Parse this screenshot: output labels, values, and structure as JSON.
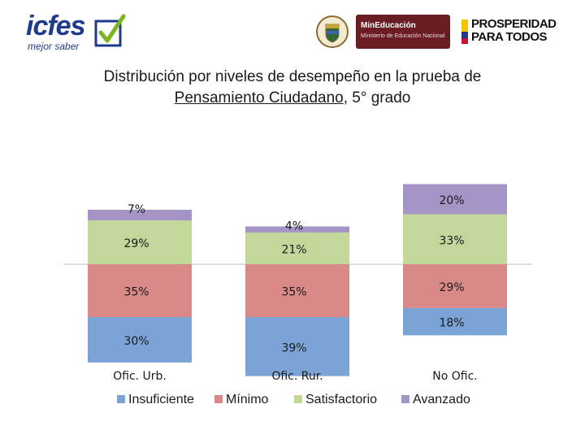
{
  "logos": {
    "icfes_word": "icfes",
    "icfes_tagline": "mejor saber",
    "min_title": "MinEducación",
    "min_subtitle": "Ministerio de Educación Nacional",
    "prosperidad_line1": "PROSPERIDAD",
    "prosperidad_line2": "PARA TODOS"
  },
  "chart_data": {
    "type": "bar",
    "stacked": true,
    "title_line1": "Distribución por niveles de desempeño en la prueba de",
    "title_line2_underlined": "Pensamiento Ciudadano",
    "title_line2_rest": ", 5° grado",
    "categories": [
      "Ofic. Urb.",
      "Ofic. Rur.",
      "No Ofic."
    ],
    "diverging": true,
    "below_baseline": [
      "Insuficiente",
      "Mínimo"
    ],
    "series": [
      {
        "name": "Insuficiente",
        "color": "#7ba3d6",
        "values": [
          30,
          39,
          18
        ],
        "labels": [
          "30%",
          "39%",
          "18%"
        ]
      },
      {
        "name": "Mínimo",
        "color": "#d98a88",
        "values": [
          35,
          35,
          29
        ],
        "labels": [
          "35%",
          "35%",
          "29%"
        ]
      },
      {
        "name": "Satisfactorio",
        "color": "#c2d89a",
        "values": [
          29,
          21,
          33
        ],
        "labels": [
          "29%",
          "21%",
          "33%"
        ]
      },
      {
        "name": "Avanzado",
        "color": "#a595c6",
        "values": [
          7,
          4,
          20
        ],
        "labels": [
          "7%",
          "4%",
          "20%"
        ]
      }
    ],
    "legend_position": "bottom",
    "grid": false
  }
}
